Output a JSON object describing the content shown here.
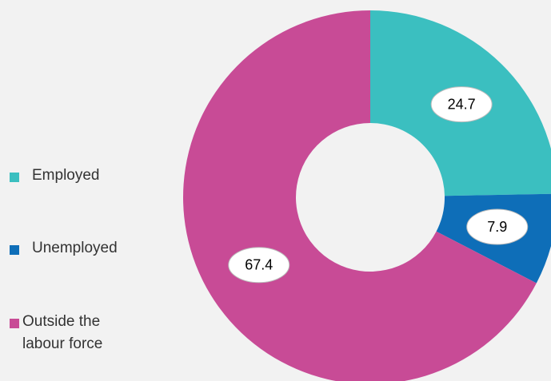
{
  "chart_data": {
    "type": "donut",
    "categories": [
      "Employed",
      "Unemployed",
      "Outside the labour force"
    ],
    "values": [
      24.7,
      7.9,
      67.4
    ],
    "colors": [
      "#3bbfc0",
      "#0e6eb8",
      "#c84b96"
    ],
    "legend": "left"
  }
}
